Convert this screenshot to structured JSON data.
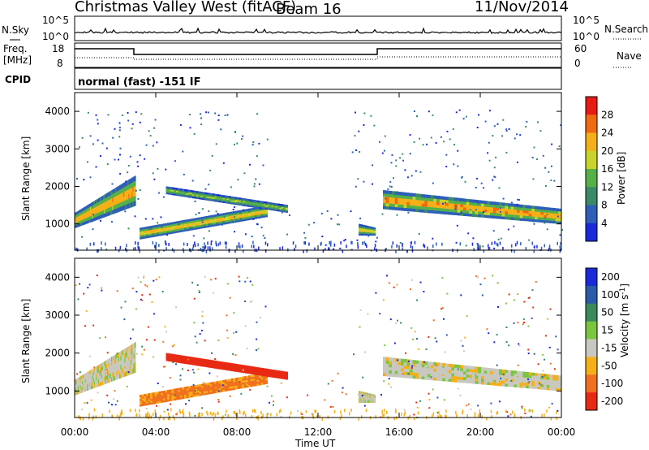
{
  "header": {
    "title": "Christmas Valley West (fitACF)",
    "beam": "Beam 16",
    "date": "11/Nov/2014"
  },
  "noise_panel": {
    "left_label": "N.Sky",
    "right_label": "N.Search",
    "ticks_left": [
      "10^5",
      "10^0"
    ],
    "ticks_right": [
      "10^5",
      "10^0"
    ]
  },
  "freq_panel": {
    "left_label": "Freq.",
    "left_unit": "[MHz]",
    "right_label": "Nave",
    "ticks_left": [
      "18",
      "8"
    ],
    "ticks_right": [
      "60",
      "0"
    ]
  },
  "cpid": {
    "label": "CPID",
    "text": "normal (fast) -151 IF"
  },
  "chart_data": [
    {
      "type": "heatmap",
      "panel": "power",
      "ylabel": "Slant Range [km]",
      "yticks": [
        "1000",
        "2000",
        "3000",
        "4000"
      ],
      "ylim": [
        300,
        4500
      ],
      "xlim_hours": [
        0,
        24
      ],
      "xtick_labels": [
        "00:00",
        "04:00",
        "08:00",
        "12:00",
        "16:00",
        "20:00",
        "00:00"
      ],
      "colorbar": {
        "label": "Power [dB]",
        "ticks": [
          "4",
          "8",
          "12",
          "16",
          "20",
          "24",
          "28"
        ],
        "colors": [
          "#1a2ad8",
          "#2d5fb8",
          "#3a8a6a",
          "#56b048",
          "#c8d42c",
          "#f5b018",
          "#f06a10",
          "#e81a14"
        ]
      },
      "features": [
        {
          "start_h": 0.0,
          "end_h": 3.0,
          "range_from_km": [
            900,
            1300
          ],
          "range_to_km": [
            1500,
            2300
          ],
          "power_db": 26
        },
        {
          "start_h": 3.2,
          "end_h": 9.5,
          "range_from_km": [
            600,
            900
          ],
          "range_to_km": [
            1200,
            1500
          ],
          "power_db": 24
        },
        {
          "start_h": 4.5,
          "end_h": 10.5,
          "range_from_km": [
            1800,
            2000
          ],
          "range_to_km": [
            1300,
            1500
          ],
          "power_db": 18
        },
        {
          "start_h": 14.0,
          "end_h": 14.8,
          "range_from_km": [
            700,
            1000
          ],
          "range_to_km": [
            700,
            900
          ],
          "power_db": 22
        },
        {
          "start_h": 15.2,
          "end_h": 24.0,
          "range_from_km": [
            1400,
            1900
          ],
          "range_to_km": [
            1000,
            1400
          ],
          "power_db": 27
        }
      ]
    },
    {
      "type": "heatmap",
      "panel": "velocity",
      "ylabel": "Slant Range [km]",
      "yticks": [
        "1000",
        "2000",
        "3000",
        "4000"
      ],
      "ylim": [
        300,
        4500
      ],
      "xlim_hours": [
        0,
        24
      ],
      "xtick_labels": [
        "00:00",
        "04:00",
        "08:00",
        "12:00",
        "16:00",
        "20:00",
        "00:00"
      ],
      "xlabel": "Time UT",
      "colorbar": {
        "label": "Velocity [m s",
        "label_sup": "-1",
        "label_end": "]",
        "ticks": [
          "200",
          "100",
          "50",
          "15",
          "-15",
          "-50",
          "-100",
          "-200"
        ],
        "colors": [
          "#1a2ad8",
          "#2a5aa8",
          "#3a8a5a",
          "#7ac640",
          "#c8c8c0",
          "#f5b018",
          "#f07020",
          "#e82a14"
        ]
      },
      "features": [
        {
          "start_h": 0.0,
          "end_h": 3.0,
          "range_from_km": [
            900,
            1300
          ],
          "range_to_km": [
            1500,
            2300
          ],
          "velocity": 0
        },
        {
          "start_h": 3.2,
          "end_h": 9.5,
          "range_from_km": [
            600,
            900
          ],
          "range_to_km": [
            1200,
            1500
          ],
          "velocity": -60
        },
        {
          "start_h": 4.5,
          "end_h": 10.5,
          "range_from_km": [
            1800,
            2000
          ],
          "range_to_km": [
            1300,
            1500
          ],
          "velocity": -150
        },
        {
          "start_h": 14.0,
          "end_h": 14.8,
          "range_from_km": [
            700,
            1000
          ],
          "range_to_km": [
            700,
            900
          ],
          "velocity": 0
        },
        {
          "start_h": 15.2,
          "end_h": 24.0,
          "range_from_km": [
            1400,
            1900
          ],
          "range_to_km": [
            1000,
            1400
          ],
          "velocity": 0
        }
      ]
    }
  ]
}
